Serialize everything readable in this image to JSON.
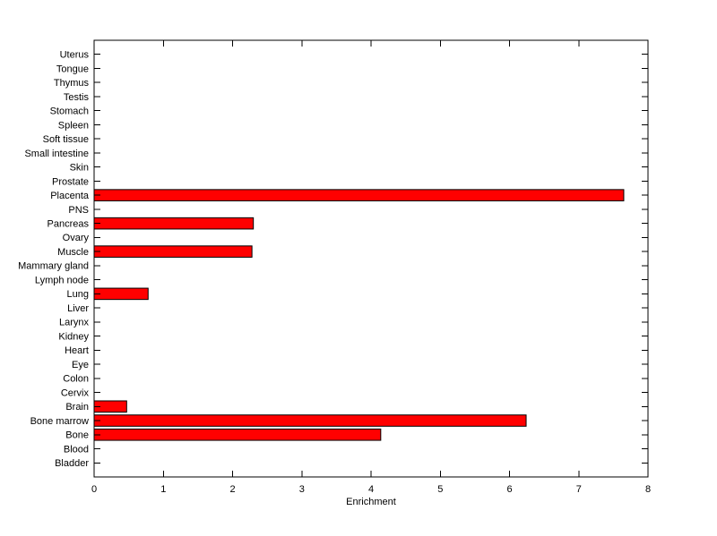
{
  "figure": {
    "background": "#ffffff"
  },
  "chart_data": {
    "type": "bar",
    "orientation": "horizontal",
    "title": "",
    "xlabel": "Enrichment",
    "ylabel": "",
    "xlim": [
      0,
      8
    ],
    "xticks": [
      0,
      1,
      2,
      3,
      4,
      5,
      6,
      7,
      8
    ],
    "grid": false,
    "legend": null,
    "bar_color": "#ff0000",
    "bar_border_color": "#000000",
    "axis_color": "#000000",
    "categories": [
      "Uterus",
      "Tongue",
      "Thymus",
      "Testis",
      "Stomach",
      "Spleen",
      "Soft tissue",
      "Small intestine",
      "Skin",
      "Prostate",
      "Placenta",
      "PNS",
      "Pancreas",
      "Ovary",
      "Muscle",
      "Mammary gland",
      "Lymph node",
      "Lung",
      "Liver",
      "Larynx",
      "Kidney",
      "Heart",
      "Eye",
      "Colon",
      "Cervix",
      "Brain",
      "Bone marrow",
      "Bone",
      "Blood",
      "Bladder"
    ],
    "values": [
      0,
      0,
      0,
      0,
      0,
      0,
      0,
      0,
      0,
      0,
      7.65,
      0,
      2.3,
      0,
      2.28,
      0,
      0,
      0.78,
      0,
      0,
      0,
      0,
      0,
      0,
      0,
      0.47,
      6.24,
      4.14,
      0,
      0
    ]
  }
}
